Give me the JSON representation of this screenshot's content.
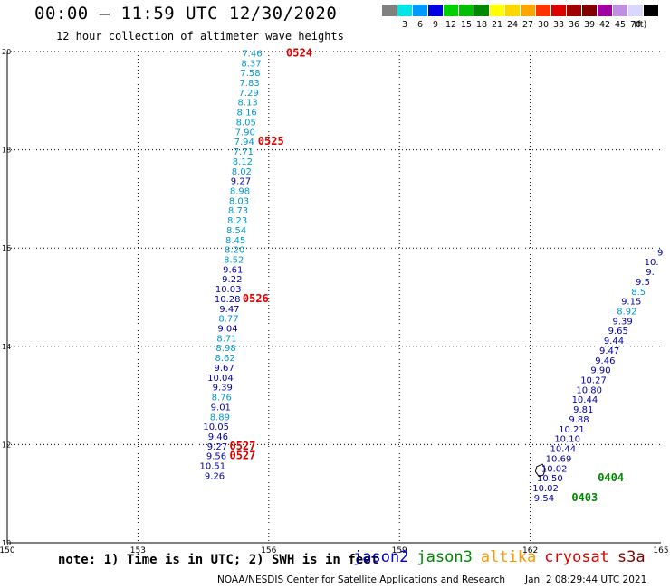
{
  "header": {
    "title": "00:00 – 11:59 UTC 12/30/2020",
    "subtitle": "12 hour collection of altimeter wave heights"
  },
  "legend": {
    "unit": "(ft)",
    "bins": [
      {
        "label": "",
        "color": "#808080"
      },
      {
        "label": "3",
        "color": "#00e5e5"
      },
      {
        "label": "6",
        "color": "#0099ff"
      },
      {
        "label": "9",
        "color": "#0000e0"
      },
      {
        "label": "12",
        "color": "#00d000"
      },
      {
        "label": "15",
        "color": "#00c000"
      },
      {
        "label": "18",
        "color": "#008800"
      },
      {
        "label": "21",
        "color": "#ffff00"
      },
      {
        "label": "24",
        "color": "#ffd700"
      },
      {
        "label": "27",
        "color": "#ffa500"
      },
      {
        "label": "30",
        "color": "#ff3300"
      },
      {
        "label": "33",
        "color": "#dd0000"
      },
      {
        "label": "36",
        "color": "#a00000"
      },
      {
        "label": "39",
        "color": "#800000"
      },
      {
        "label": "42",
        "color": "#a000a0"
      },
      {
        "label": "45",
        "color": "#c090e0"
      },
      {
        "label": "70",
        "color": "#d8d8ff"
      },
      {
        "label": "",
        "color": "#000000"
      }
    ]
  },
  "footer": {
    "note": "note: 1) Time is in UTC; 2) SWH is in feet",
    "satellites": [
      {
        "name": "jason2",
        "color": "#0000cc"
      },
      {
        "name": "jason3",
        "color": "#008800"
      },
      {
        "name": "altika",
        "color": "#ff9900"
      },
      {
        "name": "cryosat",
        "color": "#dd0000"
      },
      {
        "name": "s3a",
        "color": "#880000"
      }
    ],
    "credit": "NOAA/NESDIS Center for Satellite Applications and Research",
    "generated": "Jan  2 08:29:44 UTC 2021"
  },
  "chart_data": {
    "type": "scatter",
    "xlim": [
      150,
      165
    ],
    "ylim": [
      10,
      20
    ],
    "x_ticks": [
      "150",
      "153",
      "156",
      "159",
      "162",
      "165"
    ],
    "y_ticks": [
      "10",
      "12",
      "14",
      "16",
      "18",
      "20"
    ],
    "grid": true,
    "colors": {
      "cyan_track": "#0099cc",
      "blue_track": "#0000aa",
      "time_label": "#dd0000",
      "green_label": "#008800"
    },
    "track_left": [
      {
        "lon": 155.85,
        "lat": 19.9,
        "v": "7.46",
        "c": "cyan"
      },
      {
        "lon": 155.83,
        "lat": 19.7,
        "v": "8.37",
        "c": "cyan"
      },
      {
        "lon": 155.81,
        "lat": 19.5,
        "v": "7.58",
        "c": "cyan"
      },
      {
        "lon": 155.79,
        "lat": 19.3,
        "v": "7.83",
        "c": "cyan"
      },
      {
        "lon": 155.77,
        "lat": 19.1,
        "v": "7.29",
        "c": "cyan"
      },
      {
        "lon": 155.75,
        "lat": 18.9,
        "v": "8.13",
        "c": "cyan"
      },
      {
        "lon": 155.73,
        "lat": 18.7,
        "v": "8.16",
        "c": "cyan"
      },
      {
        "lon": 155.71,
        "lat": 18.5,
        "v": "8.05",
        "c": "cyan"
      },
      {
        "lon": 155.69,
        "lat": 18.3,
        "v": "7.90",
        "c": "cyan"
      },
      {
        "lon": 155.67,
        "lat": 18.1,
        "v": "7.94",
        "c": "cyan"
      },
      {
        "lon": 155.65,
        "lat": 17.9,
        "v": "7.71",
        "c": "cyan"
      },
      {
        "lon": 155.63,
        "lat": 17.7,
        "v": "8.12",
        "c": "cyan"
      },
      {
        "lon": 155.61,
        "lat": 17.5,
        "v": "8.02",
        "c": "cyan"
      },
      {
        "lon": 155.59,
        "lat": 17.3,
        "v": "9.27",
        "c": "blue"
      },
      {
        "lon": 155.57,
        "lat": 17.1,
        "v": "8.98",
        "c": "cyan"
      },
      {
        "lon": 155.55,
        "lat": 16.9,
        "v": "8.03",
        "c": "cyan"
      },
      {
        "lon": 155.53,
        "lat": 16.7,
        "v": "8.73",
        "c": "cyan"
      },
      {
        "lon": 155.51,
        "lat": 16.5,
        "v": "8.23",
        "c": "cyan"
      },
      {
        "lon": 155.49,
        "lat": 16.3,
        "v": "8.54",
        "c": "cyan"
      },
      {
        "lon": 155.47,
        "lat": 16.1,
        "v": "8.45",
        "c": "cyan"
      },
      {
        "lon": 155.45,
        "lat": 15.9,
        "v": "8.20",
        "c": "cyan"
      },
      {
        "lon": 155.43,
        "lat": 15.7,
        "v": "8.52",
        "c": "cyan"
      },
      {
        "lon": 155.41,
        "lat": 15.5,
        "v": "9.61",
        "c": "blue"
      },
      {
        "lon": 155.39,
        "lat": 15.3,
        "v": "9.22",
        "c": "blue"
      },
      {
        "lon": 155.37,
        "lat": 15.1,
        "v": "10.03",
        "c": "blue"
      },
      {
        "lon": 155.35,
        "lat": 14.9,
        "v": "10.28",
        "c": "blue"
      },
      {
        "lon": 155.33,
        "lat": 14.7,
        "v": "9.47",
        "c": "blue"
      },
      {
        "lon": 155.31,
        "lat": 14.5,
        "v": "8.77",
        "c": "cyan"
      },
      {
        "lon": 155.29,
        "lat": 14.3,
        "v": "9.04",
        "c": "blue"
      },
      {
        "lon": 155.27,
        "lat": 14.1,
        "v": "8.71",
        "c": "cyan"
      },
      {
        "lon": 155.25,
        "lat": 13.9,
        "v": "8.98",
        "c": "cyan"
      },
      {
        "lon": 155.23,
        "lat": 13.7,
        "v": "8.62",
        "c": "cyan"
      },
      {
        "lon": 155.21,
        "lat": 13.5,
        "v": "9.67",
        "c": "blue"
      },
      {
        "lon": 155.19,
        "lat": 13.3,
        "v": "10.04",
        "c": "blue"
      },
      {
        "lon": 155.17,
        "lat": 13.1,
        "v": "9.39",
        "c": "blue"
      },
      {
        "lon": 155.15,
        "lat": 12.9,
        "v": "8.76",
        "c": "cyan"
      },
      {
        "lon": 155.13,
        "lat": 12.7,
        "v": "9.01",
        "c": "blue"
      },
      {
        "lon": 155.11,
        "lat": 12.5,
        "v": "8.89",
        "c": "cyan"
      },
      {
        "lon": 155.09,
        "lat": 12.3,
        "v": "10.05",
        "c": "blue"
      },
      {
        "lon": 155.07,
        "lat": 12.1,
        "v": "9.46",
        "c": "blue"
      },
      {
        "lon": 155.05,
        "lat": 11.9,
        "v": "9.27",
        "c": "blue"
      },
      {
        "lon": 155.03,
        "lat": 11.7,
        "v": "9.56",
        "c": "blue"
      },
      {
        "lon": 155.01,
        "lat": 11.5,
        "v": "10.51",
        "c": "blue"
      },
      {
        "lon": 154.99,
        "lat": 11.3,
        "v": "9.26",
        "c": "blue"
      }
    ],
    "track_right": [
      {
        "lon": 165.05,
        "lat": 15.85,
        "v": "9",
        "c": "blue"
      },
      {
        "lon": 164.95,
        "lat": 15.65,
        "v": "10.",
        "c": "blue"
      },
      {
        "lon": 164.85,
        "lat": 15.45,
        "v": "9.",
        "c": "blue"
      },
      {
        "lon": 164.75,
        "lat": 15.25,
        "v": "9.5",
        "c": "blue"
      },
      {
        "lon": 164.65,
        "lat": 15.05,
        "v": "8.5",
        "c": "cyan"
      },
      {
        "lon": 164.55,
        "lat": 14.85,
        "v": "9.15",
        "c": "blue"
      },
      {
        "lon": 164.45,
        "lat": 14.65,
        "v": "8.92",
        "c": "cyan"
      },
      {
        "lon": 164.35,
        "lat": 14.45,
        "v": "9.39",
        "c": "blue"
      },
      {
        "lon": 164.25,
        "lat": 14.25,
        "v": "9.65",
        "c": "blue"
      },
      {
        "lon": 164.15,
        "lat": 14.05,
        "v": "9.44",
        "c": "blue"
      },
      {
        "lon": 164.05,
        "lat": 13.85,
        "v": "9.47",
        "c": "blue"
      },
      {
        "lon": 163.95,
        "lat": 13.65,
        "v": "9.46",
        "c": "blue"
      },
      {
        "lon": 163.85,
        "lat": 13.45,
        "v": "9.90",
        "c": "blue"
      },
      {
        "lon": 163.75,
        "lat": 13.25,
        "v": "10.27",
        "c": "blue"
      },
      {
        "lon": 163.65,
        "lat": 13.05,
        "v": "10.80",
        "c": "blue"
      },
      {
        "lon": 163.55,
        "lat": 12.85,
        "v": "10.44",
        "c": "blue"
      },
      {
        "lon": 163.45,
        "lat": 12.65,
        "v": "9.81",
        "c": "blue"
      },
      {
        "lon": 163.35,
        "lat": 12.45,
        "v": "9.88",
        "c": "blue"
      },
      {
        "lon": 163.25,
        "lat": 12.25,
        "v": "10.21",
        "c": "blue"
      },
      {
        "lon": 163.15,
        "lat": 12.05,
        "v": "10.10",
        "c": "blue"
      },
      {
        "lon": 163.05,
        "lat": 11.85,
        "v": "10.44",
        "c": "blue"
      },
      {
        "lon": 162.95,
        "lat": 11.65,
        "v": "10.69",
        "c": "blue"
      },
      {
        "lon": 162.85,
        "lat": 11.45,
        "v": "10.02",
        "c": "blue"
      },
      {
        "lon": 162.75,
        "lat": 11.25,
        "v": "10.50",
        "c": "blue"
      },
      {
        "lon": 162.65,
        "lat": 11.05,
        "v": "10.02",
        "c": "blue"
      },
      {
        "lon": 162.55,
        "lat": 10.85,
        "v": "9.54",
        "c": "blue"
      }
    ],
    "time_labels": [
      {
        "lon": 156.4,
        "lat": 19.9,
        "text": "0524",
        "color": "red"
      },
      {
        "lon": 155.75,
        "lat": 18.1,
        "text": "0525",
        "color": "red"
      },
      {
        "lon": 155.4,
        "lat": 14.9,
        "text": "0526",
        "color": "red"
      },
      {
        "lon": 155.1,
        "lat": 11.9,
        "text": "0527",
        "color": "red"
      },
      {
        "lon": 155.1,
        "lat": 11.7,
        "text": "0527",
        "color": "red"
      },
      {
        "lon": 163.55,
        "lat": 11.25,
        "text": "0404",
        "color": "green"
      },
      {
        "lon": 162.95,
        "lat": 10.85,
        "text": "0403",
        "color": "green"
      }
    ],
    "island": [
      [
        162.15,
        11.55
      ],
      [
        162.28,
        11.6
      ],
      [
        162.35,
        11.5
      ],
      [
        162.3,
        11.38
      ],
      [
        162.2,
        11.35
      ],
      [
        162.12,
        11.45
      ]
    ]
  }
}
